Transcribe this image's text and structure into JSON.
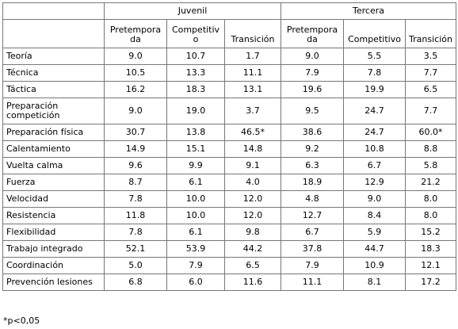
{
  "table": {
    "groups": [
      "Juvenil",
      "Tercera"
    ],
    "columns": [
      "Pretemporada",
      "Competitivo",
      "Transición",
      "Pretemporada",
      "Competitivo",
      "Transición"
    ],
    "rows": [
      [
        "Teoría",
        "9.0",
        "10.7",
        "1.7",
        "9.0",
        "5.5",
        "3.5"
      ],
      [
        "Técnica",
        "10.5",
        "13.3",
        "11.1",
        "7.9",
        "7.8",
        "7.7"
      ],
      [
        "Táctica",
        "16.2",
        "18.3",
        "13.1",
        "19.6",
        "19.9",
        "6.5"
      ],
      [
        "Preparación competición",
        "9.0",
        "19.0",
        "3.7",
        "9.5",
        "24.7",
        "7.7"
      ],
      [
        "Preparación física",
        "30.7",
        "13.8",
        "46.5*",
        "38.6",
        "24.7",
        "60.0*"
      ],
      [
        "Calentamiento",
        "14.9",
        "15.1",
        "14.8",
        "9.2",
        "10.8",
        "8.8"
      ],
      [
        "Vuelta calma",
        "9.6",
        "9.9",
        "9.1",
        "6.3",
        "6.7",
        "5.8"
      ],
      [
        "Fuerza",
        "8.7",
        "6.1",
        "4.0",
        "18.9",
        "12.9",
        "21.2"
      ],
      [
        "Velocidad",
        "7.8",
        "10.0",
        "12.0",
        "4.8",
        "9.0",
        "8.0"
      ],
      [
        "Resistencia",
        "11.8",
        "10.0",
        "12.0",
        "12.7",
        "8.4",
        "8.0"
      ],
      [
        "Flexibilidad",
        "7.8",
        "6.1",
        "9.8",
        "6.7",
        "5.9",
        "15.2"
      ],
      [
        "Trabajo integrado",
        "52.1",
        "53.9",
        "44.2",
        "37.8",
        "44.7",
        "18.3"
      ],
      [
        "Coordinación",
        "5.0",
        "7.9",
        "6.5",
        "7.9",
        "10.9",
        "12.1"
      ],
      [
        "Prevención lesiones",
        "6.8",
        "6.0",
        "11.6",
        "11.1",
        "8.1",
        "17.2"
      ]
    ]
  },
  "footnote": "*p<0,05"
}
